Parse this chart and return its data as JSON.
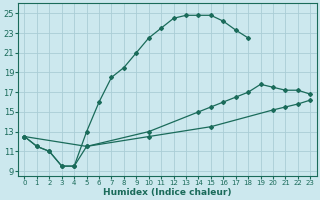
{
  "xlabel": "Humidex (Indice chaleur)",
  "xlim": [
    -0.5,
    23.5
  ],
  "ylim": [
    8.5,
    26.0
  ],
  "xticks": [
    0,
    1,
    2,
    3,
    4,
    5,
    6,
    7,
    8,
    9,
    10,
    11,
    12,
    13,
    14,
    15,
    16,
    17,
    18,
    19,
    20,
    21,
    22,
    23
  ],
  "yticks": [
    9,
    11,
    13,
    15,
    17,
    19,
    21,
    23,
    25
  ],
  "bg_color": "#cce8ee",
  "grid_color": "#aacdd6",
  "line_color": "#1a6b5a",
  "line1_x": [
    0,
    1,
    2,
    3,
    4,
    5,
    6,
    7,
    8,
    9,
    10,
    11,
    12,
    13,
    14,
    15,
    16,
    17,
    18
  ],
  "line1_y": [
    12.5,
    11.5,
    11.0,
    9.5,
    9.5,
    13.0,
    16.0,
    18.5,
    19.5,
    21.0,
    22.5,
    23.5,
    24.5,
    24.8,
    24.8,
    24.8,
    24.2,
    23.3,
    22.5
  ],
  "line2_x": [
    0,
    1,
    2,
    3,
    4,
    5,
    10,
    14,
    15,
    16,
    17,
    18,
    19,
    20,
    21,
    22,
    23
  ],
  "line2_y": [
    12.5,
    11.5,
    11.0,
    9.5,
    9.5,
    11.5,
    13.0,
    15.0,
    15.5,
    16.0,
    16.5,
    17.0,
    17.8,
    17.5,
    17.2,
    17.2,
    16.8
  ],
  "line3_x": [
    0,
    5,
    10,
    15,
    20,
    21,
    22,
    23
  ],
  "line3_y": [
    12.5,
    11.5,
    12.5,
    13.5,
    15.2,
    15.5,
    15.8,
    16.2
  ]
}
